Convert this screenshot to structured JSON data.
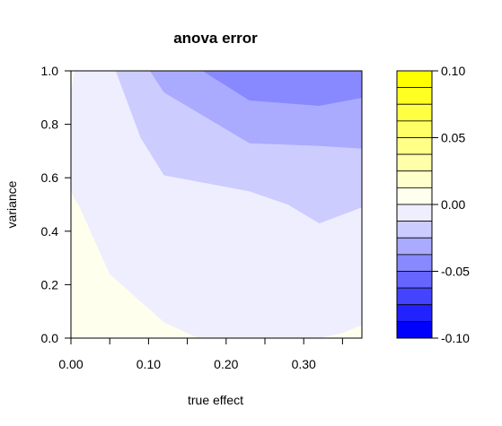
{
  "chart_data": {
    "type": "heatmap",
    "subtype": "filled-contour",
    "title": "anova error",
    "xlabel": "true effect",
    "ylabel": "variance",
    "xlim": [
      0,
      0.375
    ],
    "ylim": [
      0,
      1
    ],
    "x_ticks": [
      0.0,
      0.1,
      0.2,
      0.3
    ],
    "x_tick_labels": [
      "0.00",
      "0.10",
      "0.20",
      "0.30"
    ],
    "y_ticks": [
      0.0,
      0.2,
      0.4,
      0.6,
      0.8,
      1.0
    ],
    "y_tick_labels": [
      "0.0",
      "0.2",
      "0.4",
      "0.6",
      "0.8",
      "1.0"
    ],
    "grid": false,
    "colorbar": {
      "range": [
        -0.1,
        0.1
      ],
      "ticks": [
        0.1,
        0.05,
        0.0,
        -0.05,
        -0.1
      ],
      "tick_labels": [
        "0.10",
        "0.05",
        "0.00",
        "-0.05",
        "-0.10"
      ],
      "levels": [
        {
          "from": 0.0875,
          "to": 0.1,
          "color": "#ffff00"
        },
        {
          "from": 0.075,
          "to": 0.0875,
          "color": "#ffff22"
        },
        {
          "from": 0.0625,
          "to": 0.075,
          "color": "#ffff44"
        },
        {
          "from": 0.05,
          "to": 0.0625,
          "color": "#ffff66"
        },
        {
          "from": 0.0375,
          "to": 0.05,
          "color": "#ffff88"
        },
        {
          "from": 0.025,
          "to": 0.0375,
          "color": "#ffffaa"
        },
        {
          "from": 0.0125,
          "to": 0.025,
          "color": "#ffffcc"
        },
        {
          "from": 0.0,
          "to": 0.0125,
          "color": "#ffffee"
        },
        {
          "from": -0.0125,
          "to": 0.0,
          "color": "#eeeeff"
        },
        {
          "from": -0.025,
          "to": -0.0125,
          "color": "#ccccff"
        },
        {
          "from": -0.0375,
          "to": -0.025,
          "color": "#aaaaff"
        },
        {
          "from": -0.05,
          "to": -0.0375,
          "color": "#8888ff"
        },
        {
          "from": -0.0625,
          "to": -0.05,
          "color": "#6666ff"
        },
        {
          "from": -0.075,
          "to": -0.0625,
          "color": "#4444ff"
        },
        {
          "from": -0.0875,
          "to": -0.075,
          "color": "#2222ff"
        },
        {
          "from": -0.1,
          "to": -0.0875,
          "color": "#0000ff"
        }
      ]
    },
    "regions": [
      {
        "level_range": [
          0.0,
          0.0125
        ],
        "color": "#ffffee",
        "polygon": [
          [
            0,
            0
          ],
          [
            0,
            1
          ],
          [
            0.375,
            1
          ],
          [
            0.375,
            0
          ]
        ]
      },
      {
        "level_range": [
          -0.0125,
          0.0
        ],
        "color": "#eeeeff",
        "polygon": [
          [
            0.005,
            1
          ],
          [
            0.375,
            1
          ],
          [
            0.375,
            0.05
          ],
          [
            0.35,
            0.02
          ],
          [
            0.32,
            0
          ],
          [
            0.165,
            0
          ],
          [
            0.12,
            0.06
          ],
          [
            0.05,
            0.24
          ],
          [
            0.01,
            0.5
          ],
          [
            0.005,
            0.52
          ],
          [
            0.0,
            0.55
          ],
          [
            0.0,
            0.92
          ]
        ]
      },
      {
        "level_range": [
          -0.025,
          -0.0125
        ],
        "color": "#ccccff",
        "polygon": [
          [
            0.058,
            1
          ],
          [
            0.375,
            1
          ],
          [
            0.375,
            0.49
          ],
          [
            0.32,
            0.43
          ],
          [
            0.28,
            0.5
          ],
          [
            0.23,
            0.55
          ],
          [
            0.12,
            0.61
          ],
          [
            0.09,
            0.75
          ]
        ]
      },
      {
        "level_range": [
          -0.0375,
          -0.025
        ],
        "color": "#aaaaff",
        "polygon": [
          [
            0.102,
            1
          ],
          [
            0.375,
            1
          ],
          [
            0.375,
            0.71
          ],
          [
            0.32,
            0.72
          ],
          [
            0.23,
            0.73
          ],
          [
            0.12,
            0.92
          ]
        ]
      },
      {
        "level_range": [
          -0.05,
          -0.0375
        ],
        "color": "#8888ff",
        "polygon": [
          [
            0.17,
            1
          ],
          [
            0.375,
            1
          ],
          [
            0.375,
            0.9
          ],
          [
            0.32,
            0.87
          ],
          [
            0.23,
            0.89
          ]
        ]
      }
    ]
  }
}
